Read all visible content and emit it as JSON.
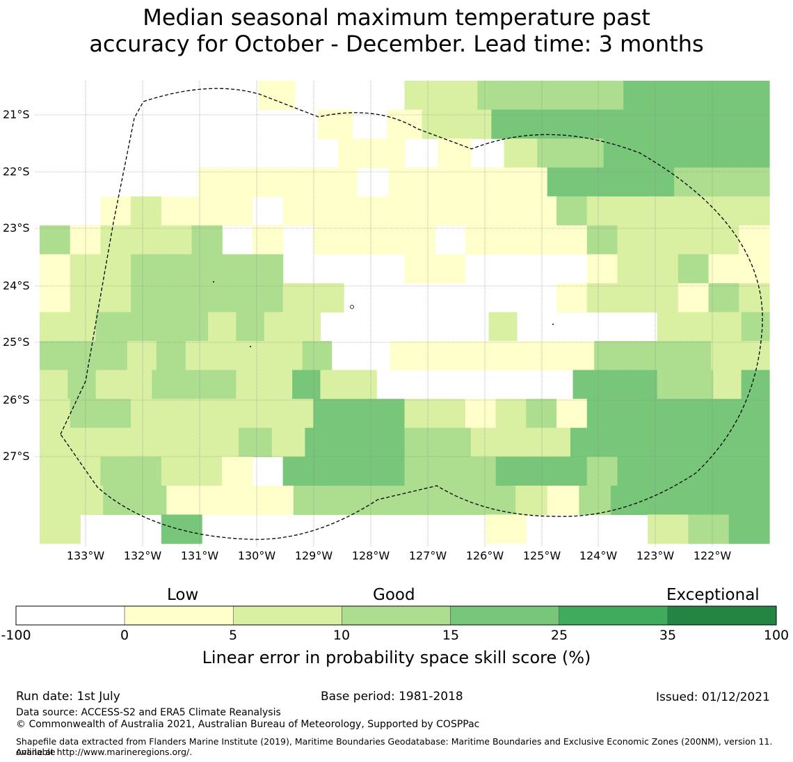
{
  "title_line1": "Median seasonal maximum temperature past",
  "title_line2": "accuracy for October - December. Lead time: 3 months",
  "map": {
    "lat_labels": [
      "21°S",
      "22°S",
      "23°S",
      "24°S",
      "25°S",
      "26°S",
      "27°S"
    ],
    "lon_labels": [
      "133°W",
      "132°W",
      "131°W",
      "130°W",
      "129°W",
      "128°W",
      "127°W",
      "126°W",
      "125°W",
      "124°W",
      "123°W",
      "122°W"
    ],
    "category_colors": [
      "#ffffff",
      "#ffffcc",
      "#d9f0a3",
      "#addd8e",
      "#78c679",
      "#41ab5d",
      "#238443"
    ],
    "grid_rows": [
      "______0___1122223333",
      "________0_01133333333",
      "_________00_0_12233333",
      "_____00000_000003333222",
      "__01000_0000000002111111",
      "201112_0_0000_0000211110",
      "01122222____00____011200",
      "0112222211_______0111021",
      "1122221211______1_____1112",
      "2221211112__0000000222211",
      "121122211311_______3332213",
      "122111111333110120333333",
      "1111112133322111333333",
      "1122110_3333222333233333",
      "11220000222222210233333",
      "1__3_______0___123"
    ]
  },
  "legend": {
    "category_labels": [
      "Low",
      "Good",
      "Exceptional"
    ],
    "bins": [
      {
        "from": "-100",
        "to": "0",
        "color": "#ffffff"
      },
      {
        "from": "0",
        "to": "5",
        "color": "#ffffcc"
      },
      {
        "from": "5",
        "to": "10",
        "color": "#d9f0a3"
      },
      {
        "from": "10",
        "to": "15",
        "color": "#addd8e"
      },
      {
        "from": "15",
        "to": "25",
        "color": "#78c679"
      },
      {
        "from": "25",
        "to": "35",
        "color": "#41ab5d"
      },
      {
        "from": "35",
        "to": "100",
        "color": "#238443"
      }
    ],
    "tick_labels": [
      "-100",
      "0",
      "5",
      "10",
      "15",
      "25",
      "35",
      "100"
    ],
    "title": "Linear error in probability space skill score (%)"
  },
  "footer": {
    "run_date": "Run date: 1st July",
    "base_period": "Base period: 1981-2018",
    "issued": "Issued: 01/12/2021",
    "data_source": "Data source: ACCESS-S2 and ERA5 Climate Reanalysis",
    "copyright": "© Commonwealth of Australia 2021, Australian Bureau of Meteorology, Supported by COSPPac",
    "shapefile_line1": "Shapefile data extracted from Flanders Marine Institute (2019), Maritime Boundaries Geodatabase: Maritime Boundaries and Exclusive Economic Zones (200NM), version 11. Available",
    "shapefile_line2": "online at http://www.marineregions.org/."
  }
}
